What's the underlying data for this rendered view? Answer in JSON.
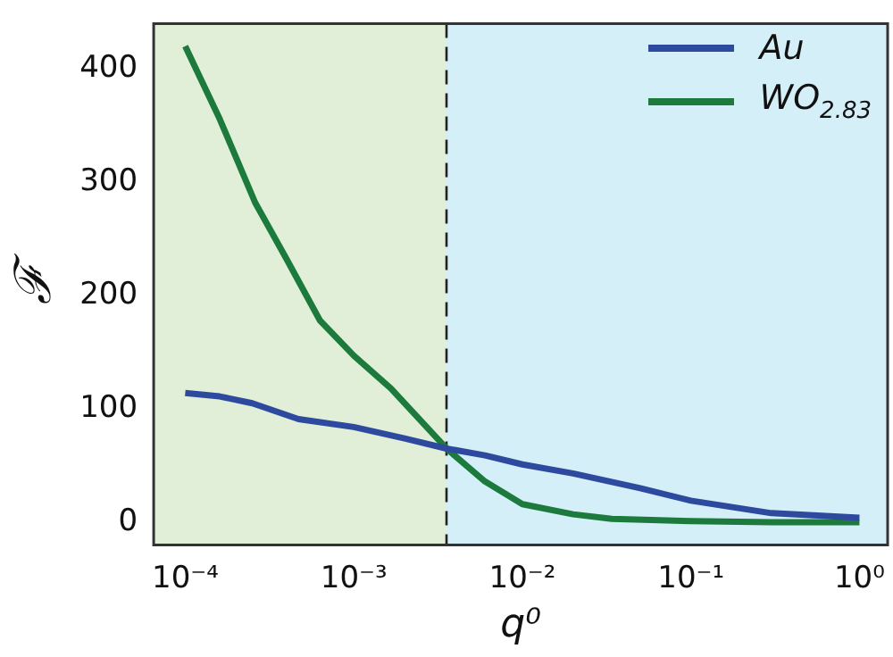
{
  "chart_data": {
    "type": "line",
    "xlabel": "q⁰",
    "ylabel": "ℱ",
    "log": "x",
    "xlim": [
      6.5e-05,
      1.47
    ],
    "xticks": [
      {
        "value": 0.0001,
        "label": "10⁻⁴"
      },
      {
        "value": 0.001,
        "label": "10⁻³"
      },
      {
        "value": 0.01,
        "label": "10⁻²"
      },
      {
        "value": 0.1,
        "label": "10⁻¹"
      },
      {
        "value": 1,
        "label": "10⁰"
      }
    ],
    "ylim": [
      -20,
      440
    ],
    "yticks": [
      0,
      100,
      200,
      300,
      400
    ],
    "series": [
      {
        "name": "Au",
        "color": "#2e4a9e",
        "x": [
          0.0001,
          0.00016,
          0.00025,
          0.00047,
          0.001,
          0.002,
          0.00355,
          0.006,
          0.01,
          0.02,
          0.05,
          0.1,
          0.3,
          1
        ],
        "values": [
          114,
          111,
          105,
          91,
          84,
          74,
          65,
          59,
          51,
          43,
          30,
          19,
          8,
          4
        ]
      },
      {
        "name": "WO$_{2.83}$",
        "color": "#1c7a3c",
        "x": [
          0.0001,
          0.00016,
          0.00026,
          0.0004,
          0.00063,
          0.001,
          0.00166,
          0.00355,
          0.006,
          0.01,
          0.02,
          0.034,
          0.1,
          0.3,
          1
        ],
        "values": [
          420,
          356,
          282,
          232,
          178,
          147,
          118,
          65,
          36,
          16,
          7,
          3,
          1,
          0,
          0
        ]
      }
    ],
    "bands": [
      {
        "axis": "x",
        "from": 6.5e-05,
        "to": 0.00355,
        "color": "#e2efd8"
      },
      {
        "axis": "x",
        "from": 0.00355,
        "to": 1.47,
        "color": "#d5eff9"
      }
    ],
    "ref_lines": [
      {
        "axis": "x",
        "value": 0.00355,
        "color": "#222222",
        "line_style": "dashed"
      }
    ],
    "legend": "top right",
    "grid": false,
    "marker": "none",
    "line_style": "solid"
  }
}
